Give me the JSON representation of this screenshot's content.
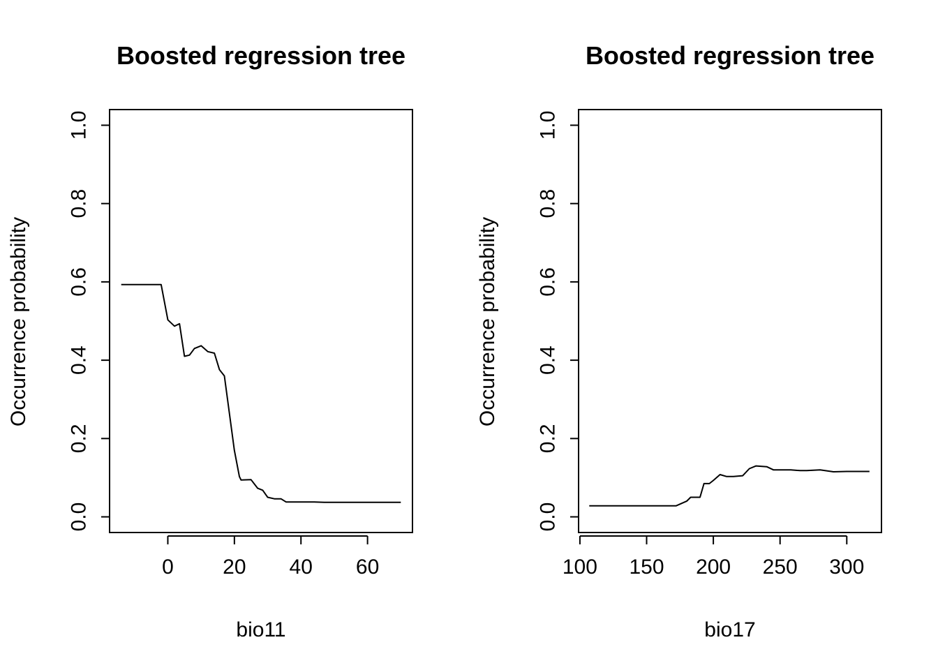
{
  "chart_data": [
    {
      "type": "line",
      "title": "Boosted regression tree",
      "xlabel": "bio11",
      "ylabel": "Occurrence probability",
      "xlim": [
        -17.5,
        73.5
      ],
      "ylim": [
        -0.04,
        1.04
      ],
      "xticks": [
        0,
        20,
        40,
        60
      ],
      "yticks": [
        0.0,
        0.2,
        0.4,
        0.6,
        0.8,
        1.0
      ],
      "ytick_labels": [
        "0.0",
        "0.2",
        "0.4",
        "0.6",
        "0.8",
        "1.0"
      ],
      "grid": false,
      "series": [
        {
          "x": [
            -14,
            -2,
            0,
            2,
            3.5,
            5,
            6.5,
            8,
            10,
            12,
            14,
            15.5,
            17,
            20,
            21.5,
            22,
            25,
            27,
            28.5,
            30,
            32,
            34,
            35.5,
            38,
            41,
            44,
            47,
            50,
            55,
            60,
            65,
            70
          ],
          "y": [
            0.593,
            0.593,
            0.503,
            0.487,
            0.493,
            0.41,
            0.413,
            0.43,
            0.437,
            0.422,
            0.418,
            0.376,
            0.36,
            0.17,
            0.103,
            0.094,
            0.095,
            0.073,
            0.068,
            0.05,
            0.046,
            0.046,
            0.038,
            0.038,
            0.038,
            0.038,
            0.037,
            0.037,
            0.037,
            0.037,
            0.037,
            0.037
          ]
        }
      ]
    },
    {
      "type": "line",
      "title": "Boosted regression tree",
      "xlabel": "bio17",
      "ylabel": "Occurrence probability",
      "xlim": [
        99,
        326
      ],
      "ylim": [
        -0.04,
        1.04
      ],
      "xticks": [
        100,
        150,
        200,
        250,
        300
      ],
      "yticks": [
        0.0,
        0.2,
        0.4,
        0.6,
        0.8,
        1.0
      ],
      "ytick_labels": [
        "0.0",
        "0.2",
        "0.4",
        "0.6",
        "0.8",
        "1.0"
      ],
      "grid": false,
      "series": [
        {
          "x": [
            107,
            130,
            150,
            172,
            180,
            183,
            190,
            193,
            197,
            200,
            205,
            210,
            215,
            222,
            227,
            232,
            240,
            245,
            250,
            258,
            265,
            270,
            280,
            290,
            300,
            310,
            317
          ],
          "y": [
            0.028,
            0.028,
            0.028,
            0.028,
            0.04,
            0.05,
            0.05,
            0.085,
            0.085,
            0.093,
            0.108,
            0.103,
            0.103,
            0.105,
            0.123,
            0.13,
            0.128,
            0.12,
            0.12,
            0.12,
            0.118,
            0.118,
            0.12,
            0.115,
            0.116,
            0.116,
            0.116
          ]
        }
      ]
    }
  ]
}
